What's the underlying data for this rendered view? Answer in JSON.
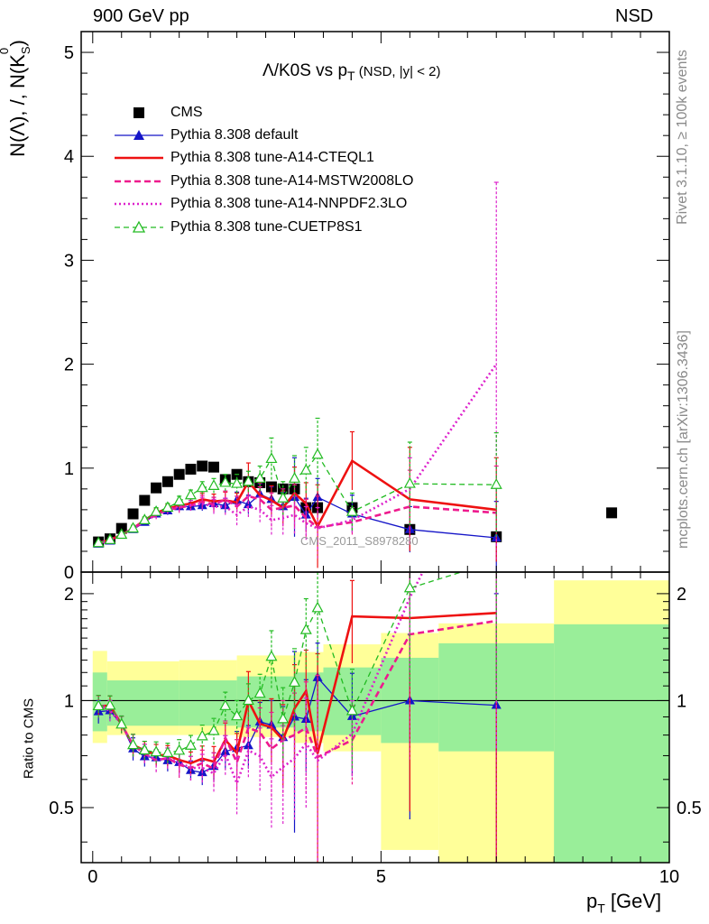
{
  "header": {
    "left": "900 GeV pp",
    "right": "NSD"
  },
  "side_labels": {
    "rivet": "Rivet 3.1.10, ≥ 100k events",
    "mcplots": "mcplots.cern.ch [arXiv:1306.3436]"
  },
  "axes": {
    "main_ylabel_pre": "N(Λ), /, N(K",
    "main_ylabel_sup": "0",
    "main_ylabel_sub": "S",
    "main_ylabel_post": ")",
    "ratio_ylabel": "Ratio to CMS",
    "xlabel_pre": "p",
    "xlabel_sub": "T",
    "xlabel_post": " [GeV]"
  },
  "plot_title": {
    "main": "Λ/K0S vs p",
    "sub": "T",
    "extra": " (NSD, |y| < 2)"
  },
  "watermark": "CMS_2011_S8978280",
  "chart_data": {
    "type": "line",
    "xlim": [
      -0.2,
      10
    ],
    "main_ylim": [
      0,
      5.2
    ],
    "ratio_ylim": [
      0.35,
      2.3
    ],
    "x_ticks": [
      0,
      5,
      10
    ],
    "x_tick_labels": [
      "0",
      "5",
      "10"
    ],
    "main_y_ticks": [
      0,
      1,
      2,
      3,
      4,
      5
    ],
    "main_y_tick_labels": [
      "0",
      "1",
      "2",
      "3",
      "4",
      "5"
    ],
    "ratio_y_ticks": [
      0.5,
      1,
      2
    ],
    "ratio_y_tick_labels": [
      "0.5",
      "1",
      "2"
    ],
    "cms": {
      "name": "CMS",
      "x": [
        0.1,
        0.3,
        0.5,
        0.7,
        0.9,
        1.1,
        1.3,
        1.5,
        1.7,
        1.9,
        2.1,
        2.3,
        2.5,
        2.7,
        2.9,
        3.1,
        3.3,
        3.5,
        3.7,
        3.9,
        4.5,
        5.5,
        7.0,
        9.0
      ],
      "y": [
        0.29,
        0.32,
        0.42,
        0.56,
        0.69,
        0.81,
        0.87,
        0.94,
        0.99,
        1.02,
        1.01,
        0.89,
        0.94,
        0.87,
        0.86,
        0.82,
        0.8,
        0.8,
        0.62,
        0.62,
        0.62,
        0.41,
        0.34,
        0.57
      ]
    },
    "ratio_bands": [
      {
        "x0": 0.0,
        "x1": 0.25,
        "yellow": [
          0.76,
          1.38
        ],
        "green": [
          0.82,
          1.2
        ]
      },
      {
        "x0": 0.25,
        "x1": 1.5,
        "yellow": [
          0.8,
          1.29
        ],
        "green": [
          0.85,
          1.14
        ]
      },
      {
        "x0": 1.5,
        "x1": 2.5,
        "yellow": [
          0.8,
          1.3
        ],
        "green": [
          0.85,
          1.14
        ]
      },
      {
        "x0": 2.5,
        "x1": 3.5,
        "yellow": [
          0.79,
          1.34
        ],
        "green": [
          0.84,
          1.17
        ]
      },
      {
        "x0": 3.5,
        "x1": 4.0,
        "yellow": [
          0.76,
          1.37
        ],
        "green": [
          0.82,
          1.2
        ]
      },
      {
        "x0": 4.0,
        "x1": 5.0,
        "yellow": [
          0.72,
          1.44
        ],
        "green": [
          0.8,
          1.24
        ]
      },
      {
        "x0": 5.0,
        "x1": 6.0,
        "yellow": [
          0.38,
          1.55
        ],
        "green": [
          0.76,
          1.32
        ]
      },
      {
        "x0": 6.0,
        "x1": 8.0,
        "yellow": [
          0.35,
          1.65
        ],
        "green": [
          0.72,
          1.45
        ]
      },
      {
        "x0": 8.0,
        "x1": 10.0,
        "yellow": [
          0.35,
          2.18
        ],
        "green": [
          0.35,
          1.64
        ]
      }
    ],
    "series": [
      {
        "name": "Pythia 8.308 default",
        "color": "#1515c8",
        "dash": "",
        "width": 1.3,
        "marker": "tri-filled",
        "x": [
          0.1,
          0.3,
          0.5,
          0.7,
          0.9,
          1.1,
          1.3,
          1.5,
          1.7,
          1.9,
          2.1,
          2.3,
          2.5,
          2.7,
          2.9,
          3.1,
          3.3,
          3.5,
          3.7,
          3.9,
          4.5,
          5.5,
          7.0
        ],
        "y": [
          0.27,
          0.3,
          0.36,
          0.41,
          0.48,
          0.56,
          0.59,
          0.63,
          0.63,
          0.64,
          0.66,
          0.64,
          0.69,
          0.65,
          0.75,
          0.7,
          0.63,
          0.72,
          0.55,
          0.72,
          0.56,
          0.41,
          0.33
        ],
        "err": [
          0.02,
          0.02,
          0.02,
          0.03,
          0.03,
          0.03,
          0.04,
          0.04,
          0.04,
          0.05,
          0.06,
          0.07,
          0.08,
          0.09,
          0.1,
          0.12,
          0.14,
          0.38,
          0.16,
          0.18,
          0.18,
          0.22,
          0.35
        ]
      },
      {
        "name": "Pythia 8.308 tune-A14-CTEQL1",
        "color": "#ee1111",
        "dash": "",
        "width": 2.6,
        "marker": "none",
        "x": [
          0.1,
          0.3,
          0.5,
          0.7,
          0.9,
          1.1,
          1.3,
          1.5,
          1.7,
          1.9,
          2.1,
          2.3,
          2.5,
          2.7,
          2.9,
          3.1,
          3.3,
          3.5,
          3.7,
          3.9,
          4.5,
          5.5,
          7.0
        ],
        "y": [
          0.28,
          0.31,
          0.36,
          0.42,
          0.5,
          0.57,
          0.61,
          0.64,
          0.66,
          0.7,
          0.68,
          0.69,
          0.67,
          0.87,
          0.74,
          0.69,
          0.62,
          0.76,
          0.66,
          0.44,
          1.07,
          0.7,
          0.6
        ],
        "err": [
          0.02,
          0.02,
          0.02,
          0.03,
          0.03,
          0.04,
          0.04,
          0.05,
          0.05,
          0.06,
          0.07,
          0.08,
          0.09,
          0.18,
          0.12,
          0.14,
          0.16,
          0.25,
          0.2,
          0.4,
          0.28,
          0.5,
          0.5
        ]
      },
      {
        "name": "Pythia 8.308 tune-A14-MSTW2008LO",
        "color": "#ee1a8e",
        "dash": "7,4",
        "width": 2.6,
        "marker": "none",
        "x": [
          0.1,
          0.3,
          0.5,
          0.7,
          0.9,
          1.1,
          1.3,
          1.5,
          1.7,
          1.9,
          2.1,
          2.3,
          2.5,
          2.7,
          2.9,
          3.1,
          3.3,
          3.5,
          3.7,
          3.9,
          4.5,
          5.5,
          7.0
        ],
        "y": [
          0.28,
          0.31,
          0.36,
          0.42,
          0.49,
          0.55,
          0.6,
          0.62,
          0.64,
          0.68,
          0.65,
          0.7,
          0.63,
          0.73,
          0.7,
          0.6,
          0.62,
          0.64,
          0.52,
          0.43,
          0.48,
          0.63,
          0.57
        ],
        "err": [
          0.02,
          0.02,
          0.02,
          0.03,
          0.03,
          0.04,
          0.04,
          0.05,
          0.05,
          0.06,
          0.07,
          0.08,
          0.1,
          0.12,
          0.12,
          0.16,
          0.18,
          0.2,
          0.18,
          0.3,
          0.12,
          0.35,
          0.45
        ]
      },
      {
        "name": "Pythia 8.308 tune-A14-NNPDF2.3LO",
        "color": "#dd22cc",
        "dash": "2,3",
        "width": 2.6,
        "marker": "none",
        "x": [
          0.1,
          0.3,
          0.5,
          0.7,
          0.9,
          1.1,
          1.3,
          1.5,
          1.7,
          1.9,
          2.1,
          2.3,
          2.5,
          2.7,
          2.9,
          3.1,
          3.3,
          3.5,
          3.7,
          3.9,
          4.5,
          5.5,
          7.0
        ],
        "y": [
          0.28,
          0.3,
          0.36,
          0.42,
          0.49,
          0.55,
          0.6,
          0.63,
          0.64,
          0.66,
          0.63,
          0.63,
          0.55,
          0.63,
          0.6,
          0.5,
          0.52,
          0.55,
          0.47,
          0.42,
          0.5,
          0.8,
          2.0
        ],
        "err": [
          0.02,
          0.02,
          0.02,
          0.03,
          0.03,
          0.04,
          0.04,
          0.05,
          0.05,
          0.06,
          0.07,
          0.08,
          0.1,
          0.1,
          0.12,
          0.14,
          0.16,
          0.18,
          0.16,
          0.2,
          0.12,
          0.3,
          1.75
        ]
      },
      {
        "name": "Pythia 8.308 tune-CUETP8S1",
        "color": "#22bb22",
        "dash": "6,4",
        "width": 1.3,
        "marker": "tri-open",
        "x": [
          0.1,
          0.3,
          0.5,
          0.7,
          0.9,
          1.1,
          1.3,
          1.5,
          1.7,
          1.9,
          2.1,
          2.3,
          2.5,
          2.7,
          2.9,
          3.1,
          3.3,
          3.5,
          3.7,
          3.9,
          4.5,
          5.5,
          7.0
        ],
        "y": [
          0.28,
          0.31,
          0.36,
          0.42,
          0.5,
          0.58,
          0.62,
          0.68,
          0.74,
          0.81,
          0.83,
          0.86,
          0.85,
          0.87,
          0.9,
          1.09,
          0.71,
          0.9,
          0.98,
          1.13,
          0.58,
          0.85,
          0.84
        ],
        "err": [
          0.02,
          0.02,
          0.02,
          0.03,
          0.03,
          0.04,
          0.04,
          0.05,
          0.05,
          0.06,
          0.07,
          0.08,
          0.09,
          0.1,
          0.12,
          0.2,
          0.16,
          0.22,
          0.22,
          0.35,
          0.18,
          0.4,
          0.5
        ]
      }
    ]
  }
}
